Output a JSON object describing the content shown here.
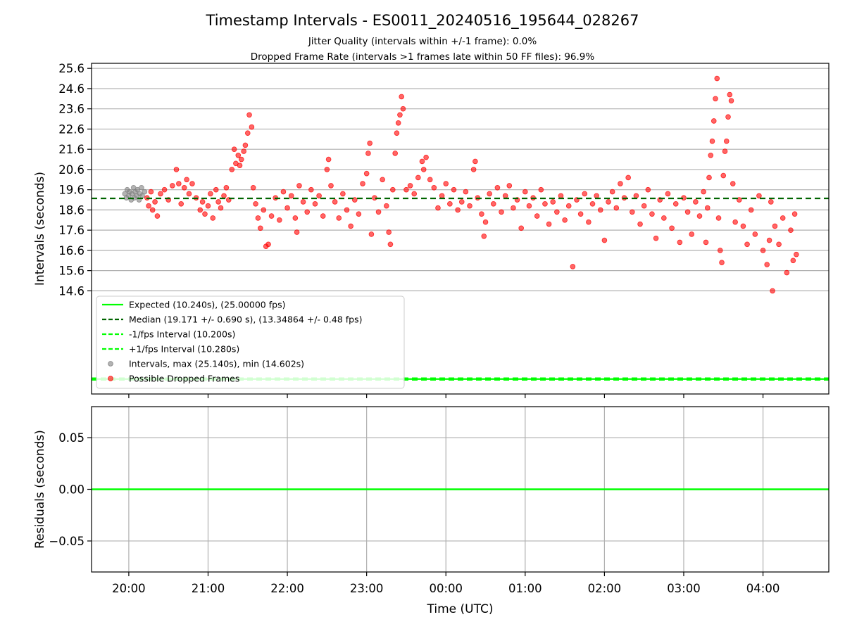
{
  "title": "Timestamp Intervals - ES0011_20240516_195644_028267",
  "subtitle_line1": "Jitter Quality (intervals within +/-1 frame): 0.0%",
  "subtitle_line2": "Dropped Frame Rate (intervals >1 frames late within 50 FF files): 96.9%",
  "colors": {
    "expected": "#00ff00",
    "median": "#006400",
    "intervals": "#808080",
    "dropped": "#ff0000",
    "grid": "#b0b0b0"
  },
  "chart_data": [
    {
      "type": "scatter",
      "ylabel": "Intervals (seconds)",
      "x_ticks": [
        "20:00",
        "21:00",
        "22:00",
        "23:00",
        "00:00",
        "01:00",
        "02:00",
        "03:00",
        "04:00"
      ],
      "x_range_hours": [
        19.53,
        28.83
      ],
      "x_tick_hours": [
        20,
        21,
        22,
        23,
        24,
        25,
        26,
        27,
        28
      ],
      "y_ticks": [
        "14.6",
        "15.6",
        "16.6",
        "17.6",
        "18.6",
        "19.6",
        "20.6",
        "21.6",
        "22.6",
        "23.6",
        "24.6",
        "25.6"
      ],
      "y_tick_values": [
        14.6,
        15.6,
        16.6,
        17.6,
        18.6,
        19.6,
        20.6,
        21.6,
        22.6,
        23.6,
        24.6,
        25.6
      ],
      "ylim": [
        9.5,
        25.85
      ],
      "grid": "y",
      "legend_position": "lower-left",
      "lines": [
        {
          "name": "Expected (10.240s), (25.00000 fps)",
          "y": 10.24,
          "style": "solid",
          "color": "#00ff00"
        },
        {
          "name": "Median (19.171 +/- 0.690 s), (13.34864 +/- 0.48 fps)",
          "y": 19.171,
          "style": "dashed",
          "color": "#006400"
        },
        {
          "name": "-1/fps Interval (10.200s)",
          "y": 10.2,
          "style": "dashed",
          "color": "#00ff00"
        },
        {
          "name": "+1/fps Interval (10.280s)",
          "y": 10.28,
          "style": "dashed",
          "color": "#00ff00"
        }
      ],
      "series": [
        {
          "name": "Intervals, max (25.140s), min (14.602s)",
          "color": "#808080",
          "points": [
            [
              19.95,
              19.4
            ],
            [
              19.97,
              19.2
            ],
            [
              19.98,
              19.6
            ],
            [
              20.0,
              19.3
            ],
            [
              20.01,
              19.5
            ],
            [
              20.03,
              19.1
            ],
            [
              20.04,
              19.4
            ],
            [
              20.06,
              19.7
            ],
            [
              20.07,
              19.2
            ],
            [
              20.08,
              19.5
            ],
            [
              20.1,
              19.3
            ],
            [
              20.11,
              19.6
            ],
            [
              20.13,
              19.1
            ],
            [
              20.14,
              19.4
            ],
            [
              20.16,
              19.7
            ],
            [
              20.17,
              19.3
            ],
            [
              20.2,
              19.5
            ]
          ]
        },
        {
          "name": "Possible Dropped Frames",
          "color": "#ff0000",
          "points": [
            [
              20.23,
              19.2
            ],
            [
              20.25,
              18.8
            ],
            [
              20.28,
              19.5
            ],
            [
              20.3,
              18.6
            ],
            [
              20.33,
              19.0
            ],
            [
              20.36,
              18.3
            ],
            [
              20.4,
              19.4
            ],
            [
              20.45,
              19.6
            ],
            [
              20.5,
              19.1
            ],
            [
              20.55,
              19.8
            ],
            [
              20.6,
              20.6
            ],
            [
              20.63,
              19.9
            ],
            [
              20.66,
              18.9
            ],
            [
              20.7,
              19.7
            ],
            [
              20.73,
              20.1
            ],
            [
              20.76,
              19.4
            ],
            [
              20.8,
              19.9
            ],
            [
              20.85,
              19.2
            ],
            [
              20.9,
              18.6
            ],
            [
              20.93,
              19.0
            ],
            [
              20.96,
              18.4
            ],
            [
              21.0,
              18.8
            ],
            [
              21.03,
              19.4
            ],
            [
              21.06,
              18.2
            ],
            [
              21.1,
              19.6
            ],
            [
              21.13,
              19.0
            ],
            [
              21.16,
              18.7
            ],
            [
              21.2,
              19.3
            ],
            [
              21.23,
              19.7
            ],
            [
              21.26,
              19.1
            ],
            [
              21.3,
              20.6
            ],
            [
              21.33,
              21.6
            ],
            [
              21.35,
              20.9
            ],
            [
              21.38,
              21.3
            ],
            [
              21.4,
              20.8
            ],
            [
              21.42,
              21.1
            ],
            [
              21.45,
              21.5
            ],
            [
              21.47,
              21.8
            ],
            [
              21.5,
              22.4
            ],
            [
              21.52,
              23.3
            ],
            [
              21.55,
              22.7
            ],
            [
              21.57,
              19.7
            ],
            [
              21.6,
              18.9
            ],
            [
              21.63,
              18.2
            ],
            [
              21.66,
              17.7
            ],
            [
              21.7,
              18.6
            ],
            [
              21.73,
              16.8
            ],
            [
              21.76,
              16.9
            ],
            [
              21.8,
              18.3
            ],
            [
              21.85,
              19.2
            ],
            [
              21.9,
              18.1
            ],
            [
              21.95,
              19.5
            ],
            [
              22.0,
              18.7
            ],
            [
              22.05,
              19.3
            ],
            [
              22.1,
              18.2
            ],
            [
              22.12,
              17.5
            ],
            [
              22.15,
              19.8
            ],
            [
              22.2,
              19.0
            ],
            [
              22.25,
              18.5
            ],
            [
              22.3,
              19.6
            ],
            [
              22.35,
              18.9
            ],
            [
              22.4,
              19.3
            ],
            [
              22.45,
              18.3
            ],
            [
              22.5,
              20.6
            ],
            [
              22.52,
              21.1
            ],
            [
              22.55,
              19.8
            ],
            [
              22.6,
              19.0
            ],
            [
              22.65,
              18.2
            ],
            [
              22.7,
              19.4
            ],
            [
              22.75,
              18.6
            ],
            [
              22.8,
              17.8
            ],
            [
              22.85,
              19.1
            ],
            [
              22.9,
              18.4
            ],
            [
              22.95,
              19.9
            ],
            [
              23.0,
              20.4
            ],
            [
              23.02,
              21.4
            ],
            [
              23.04,
              21.9
            ],
            [
              23.06,
              17.4
            ],
            [
              23.1,
              19.2
            ],
            [
              23.15,
              18.5
            ],
            [
              23.2,
              20.1
            ],
            [
              23.25,
              18.8
            ],
            [
              23.28,
              17.5
            ],
            [
              23.3,
              16.9
            ],
            [
              23.33,
              19.6
            ],
            [
              23.36,
              21.4
            ],
            [
              23.38,
              22.4
            ],
            [
              23.4,
              22.9
            ],
            [
              23.42,
              23.3
            ],
            [
              23.44,
              24.2
            ],
            [
              23.46,
              23.6
            ],
            [
              23.5,
              19.6
            ],
            [
              23.55,
              19.8
            ],
            [
              23.6,
              19.4
            ],
            [
              23.65,
              20.2
            ],
            [
              23.7,
              21.0
            ],
            [
              23.72,
              20.6
            ],
            [
              23.75,
              21.2
            ],
            [
              23.8,
              20.1
            ],
            [
              23.85,
              19.7
            ],
            [
              23.9,
              18.7
            ],
            [
              23.95,
              19.3
            ],
            [
              24.0,
              19.9
            ],
            [
              24.05,
              18.9
            ],
            [
              24.1,
              19.6
            ],
            [
              24.15,
              18.6
            ],
            [
              24.2,
              19.0
            ],
            [
              24.25,
              19.5
            ],
            [
              24.3,
              18.8
            ],
            [
              24.35,
              20.6
            ],
            [
              24.37,
              21.0
            ],
            [
              24.4,
              19.2
            ],
            [
              24.45,
              18.4
            ],
            [
              24.48,
              17.3
            ],
            [
              24.5,
              18.0
            ],
            [
              24.55,
              19.4
            ],
            [
              24.6,
              18.9
            ],
            [
              24.65,
              19.7
            ],
            [
              24.7,
              18.5
            ],
            [
              24.75,
              19.3
            ],
            [
              24.8,
              19.8
            ],
            [
              24.85,
              18.7
            ],
            [
              24.9,
              19.1
            ],
            [
              24.95,
              17.7
            ],
            [
              25.0,
              19.5
            ],
            [
              25.05,
              18.8
            ],
            [
              25.1,
              19.2
            ],
            [
              25.15,
              18.3
            ],
            [
              25.2,
              19.6
            ],
            [
              25.25,
              18.9
            ],
            [
              25.3,
              17.9
            ],
            [
              25.35,
              19.0
            ],
            [
              25.4,
              18.5
            ],
            [
              25.45,
              19.3
            ],
            [
              25.5,
              18.1
            ],
            [
              25.55,
              18.8
            ],
            [
              25.6,
              15.8
            ],
            [
              25.65,
              19.1
            ],
            [
              25.7,
              18.4
            ],
            [
              25.75,
              19.4
            ],
            [
              25.8,
              18.0
            ],
            [
              25.85,
              18.9
            ],
            [
              25.9,
              19.3
            ],
            [
              25.95,
              18.6
            ],
            [
              26.0,
              17.1
            ],
            [
              26.05,
              19.0
            ],
            [
              26.1,
              19.5
            ],
            [
              26.15,
              18.7
            ],
            [
              26.2,
              19.9
            ],
            [
              26.25,
              19.2
            ],
            [
              26.3,
              20.2
            ],
            [
              26.35,
              18.5
            ],
            [
              26.4,
              19.3
            ],
            [
              26.45,
              17.9
            ],
            [
              26.5,
              18.8
            ],
            [
              26.55,
              19.6
            ],
            [
              26.6,
              18.4
            ],
            [
              26.65,
              17.2
            ],
            [
              26.7,
              19.1
            ],
            [
              26.75,
              18.2
            ],
            [
              26.8,
              19.4
            ],
            [
              26.85,
              17.7
            ],
            [
              26.9,
              18.9
            ],
            [
              26.95,
              17.0
            ],
            [
              27.0,
              19.2
            ],
            [
              27.05,
              18.5
            ],
            [
              27.1,
              17.4
            ],
            [
              27.15,
              19.0
            ],
            [
              27.2,
              18.3
            ],
            [
              27.25,
              19.5
            ],
            [
              27.28,
              17.0
            ],
            [
              27.3,
              18.7
            ],
            [
              27.32,
              20.2
            ],
            [
              27.34,
              21.3
            ],
            [
              27.36,
              22.0
            ],
            [
              27.38,
              23.0
            ],
            [
              27.4,
              24.1
            ],
            [
              27.42,
              25.1
            ],
            [
              27.44,
              18.2
            ],
            [
              27.46,
              16.6
            ],
            [
              27.48,
              16.0
            ],
            [
              27.5,
              20.3
            ],
            [
              27.52,
              21.5
            ],
            [
              27.54,
              22.0
            ],
            [
              27.56,
              23.2
            ],
            [
              27.58,
              24.3
            ],
            [
              27.6,
              24.0
            ],
            [
              27.62,
              19.9
            ],
            [
              27.65,
              18.0
            ],
            [
              27.7,
              19.1
            ],
            [
              27.75,
              17.8
            ],
            [
              27.8,
              16.9
            ],
            [
              27.85,
              18.6
            ],
            [
              27.9,
              17.4
            ],
            [
              27.95,
              19.3
            ],
            [
              28.0,
              16.6
            ],
            [
              28.05,
              15.9
            ],
            [
              28.08,
              17.1
            ],
            [
              28.1,
              19.0
            ],
            [
              28.12,
              14.6
            ],
            [
              28.15,
              17.8
            ],
            [
              28.2,
              16.9
            ],
            [
              28.25,
              18.2
            ],
            [
              28.3,
              15.5
            ],
            [
              28.35,
              17.6
            ],
            [
              28.38,
              16.1
            ],
            [
              28.4,
              18.4
            ],
            [
              28.42,
              16.4
            ]
          ]
        }
      ]
    },
    {
      "type": "line",
      "ylabel": "Residuals (seconds)",
      "xlabel": "Time (UTC)",
      "x_ticks": [
        "20:00",
        "21:00",
        "22:00",
        "23:00",
        "00:00",
        "01:00",
        "02:00",
        "03:00",
        "04:00"
      ],
      "x_tick_hours": [
        20,
        21,
        22,
        23,
        24,
        25,
        26,
        27,
        28
      ],
      "y_ticks": [
        "0.05",
        "0.00",
        "−0.05"
      ],
      "y_tick_values": [
        0.05,
        0.0,
        -0.05
      ],
      "ylim": [
        -0.08,
        0.08
      ],
      "grid": "both",
      "lines": [
        {
          "name": "residual",
          "y": 0.0,
          "style": "solid",
          "color": "#00ff00"
        }
      ]
    }
  ]
}
